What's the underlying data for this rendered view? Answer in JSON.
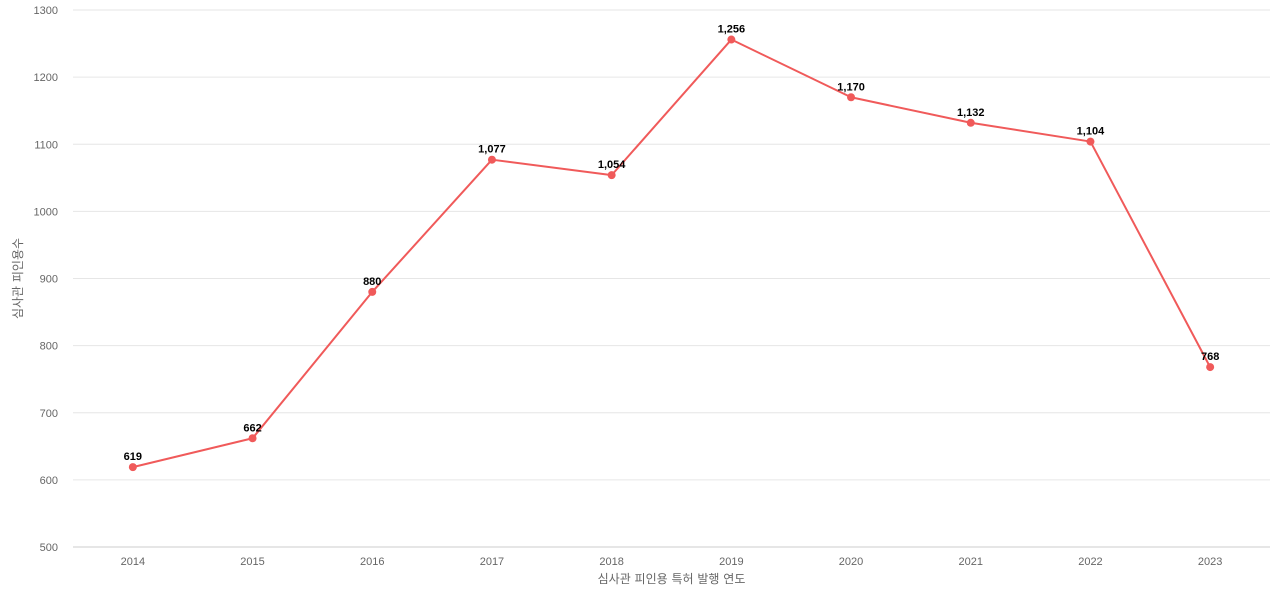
{
  "chart_data": {
    "type": "line",
    "title": "",
    "xlabel": "심사관 피인용 특허 발행 연도",
    "ylabel": "심사관 피인용수",
    "categories": [
      "2014",
      "2015",
      "2016",
      "2017",
      "2018",
      "2019",
      "2020",
      "2021",
      "2022",
      "2023"
    ],
    "series": [
      {
        "values": [
          619,
          662,
          880,
          1077,
          1054,
          1256,
          1170,
          1132,
          1104,
          768
        ],
        "labels": [
          "619",
          "662",
          "880",
          "1,077",
          "1,054",
          "1,256",
          "1,170",
          "1,132",
          "1,104",
          "768"
        ],
        "color": "#f05a5a"
      }
    ],
    "ylim": [
      500,
      1300
    ],
    "yticks": [
      500,
      600,
      700,
      800,
      900,
      1000,
      1100,
      1200,
      1300
    ],
    "grid": true,
    "legend": "none"
  }
}
